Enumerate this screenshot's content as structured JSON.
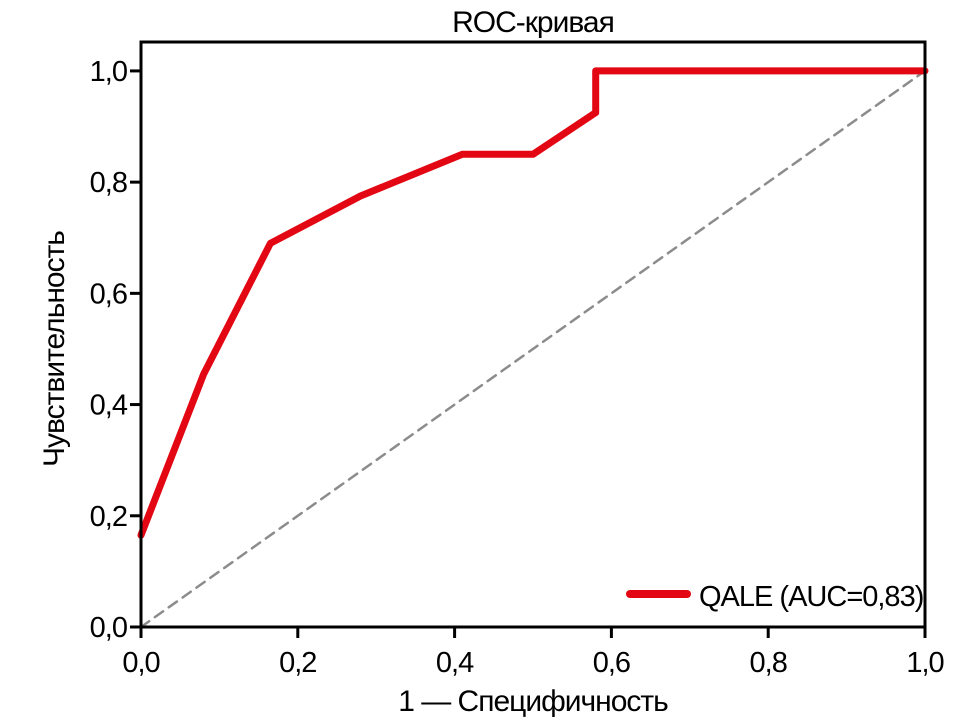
{
  "chart": {
    "background": "#ffffff",
    "frame_color": "#000000",
    "text_color": "#000000"
  },
  "chart_data": {
    "type": "line",
    "title": "ROC-кривая",
    "xlabel": "1 — Специфичность",
    "ylabel": "Чувствительность",
    "xlim": [
      0,
      1
    ],
    "ylim": [
      0,
      1.052
    ],
    "grid": false,
    "x_ticks": [
      {
        "value": 0.0,
        "label": "0,0"
      },
      {
        "value": 0.2,
        "label": "0,2"
      },
      {
        "value": 0.4,
        "label": "0,4"
      },
      {
        "value": 0.6,
        "label": "0,6"
      },
      {
        "value": 0.8,
        "label": "0,8"
      },
      {
        "value": 1.0,
        "label": "1,0"
      }
    ],
    "y_ticks": [
      {
        "value": 0.0,
        "label": "0,0"
      },
      {
        "value": 0.2,
        "label": "0,2"
      },
      {
        "value": 0.4,
        "label": "0,4"
      },
      {
        "value": 0.6,
        "label": "0,6"
      },
      {
        "value": 0.8,
        "label": "0,8"
      },
      {
        "value": 1.0,
        "label": "1,0"
      }
    ],
    "series": [
      {
        "name": "roc-curve",
        "label": "QALE (AUC=0,83)",
        "color": "#e30613",
        "line_style": "solid",
        "line_width": 7,
        "points": [
          [
            0.0,
            0.165
          ],
          [
            0.08,
            0.455
          ],
          [
            0.165,
            0.69
          ],
          [
            0.28,
            0.775
          ],
          [
            0.41,
            0.85
          ],
          [
            0.5,
            0.85
          ],
          [
            0.58,
            0.925
          ],
          [
            0.58,
            1.0
          ],
          [
            1.0,
            1.0
          ]
        ]
      },
      {
        "name": "chance-diagonal",
        "label": "",
        "color": "#8c8c8c",
        "line_style": "dashed",
        "line_width": 2.5,
        "points": [
          [
            0.0,
            0.0
          ],
          [
            1.0,
            1.0
          ]
        ]
      }
    ],
    "legend": {
      "position": "lower-right",
      "entries": [
        {
          "label": "QALE (AUC=0,83)",
          "color": "#e30613"
        }
      ]
    }
  }
}
